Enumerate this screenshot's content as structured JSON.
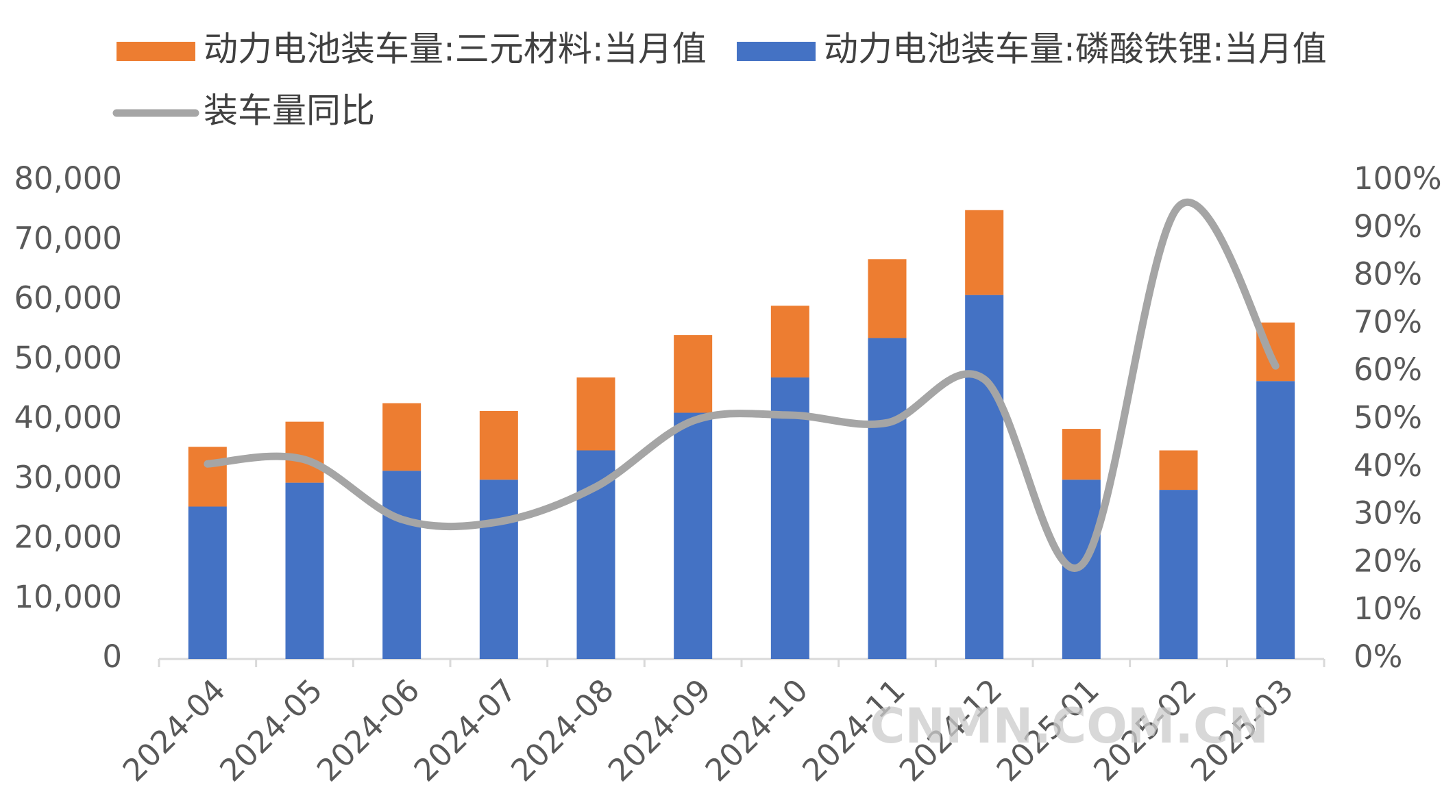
{
  "chart_data": {
    "type": "bar-line",
    "categories": [
      "2024-04",
      "2024-05",
      "2024-06",
      "2024-07",
      "2024-08",
      "2024-09",
      "2024-10",
      "2024-11",
      "2024-12",
      "2025-01",
      "2025-02",
      "2025-03"
    ],
    "series": [
      {
        "name": "动力电池装车量:三元材料:当月值",
        "color": "#ed7d31",
        "type": "bar",
        "values": [
          10000,
          10200,
          11300,
          11500,
          12200,
          13000,
          12000,
          13200,
          14200,
          8500,
          6600,
          9800
        ]
      },
      {
        "name": "动力电池装车量:磷酸铁锂:当月值",
        "color": "#4472c4",
        "type": "bar",
        "values": [
          25500,
          29500,
          31500,
          30000,
          34900,
          41200,
          47100,
          53700,
          60900,
          30000,
          28300,
          46500
        ]
      },
      {
        "name": "装车量同比",
        "color": "#a5a5a5",
        "type": "line",
        "axis": "y2",
        "values": [
          40.8,
          41.7,
          29.2,
          28.7,
          36,
          49.8,
          51,
          49.4,
          58.5,
          19.6,
          94.6,
          61.3
        ]
      }
    ],
    "ylim": [
      0,
      80000
    ],
    "yticks": [
      0,
      {
        "value": 10000,
        "label": "10,000"
      },
      {
        "value": 20000,
        "label": "20,000"
      },
      {
        "value": 30000,
        "label": "30,000"
      },
      {
        "value": 40000,
        "label": "40,000"
      },
      {
        "value": 50000,
        "label": "50,000"
      },
      {
        "value": 60000,
        "label": "60,000"
      },
      {
        "value": 70000,
        "label": "70,000"
      },
      {
        "value": 80000,
        "label": "80,000"
      }
    ],
    "y2lim": [
      0,
      100
    ],
    "y2ticks": [
      {
        "value": 0,
        "label": "0%"
      },
      {
        "value": 10,
        "label": "10%"
      },
      {
        "value": 20,
        "label": "20%"
      },
      {
        "value": 30,
        "label": "30%"
      },
      {
        "value": 40,
        "label": "40%"
      },
      {
        "value": 50,
        "label": "50%"
      },
      {
        "value": 60,
        "label": "60%"
      },
      {
        "value": 70,
        "label": "70%"
      },
      {
        "value": 80,
        "label": "80%"
      },
      {
        "value": 90,
        "label": "90%"
      },
      {
        "value": 100,
        "label": "100%"
      }
    ],
    "watermark": "CNMN.COM.CN"
  }
}
